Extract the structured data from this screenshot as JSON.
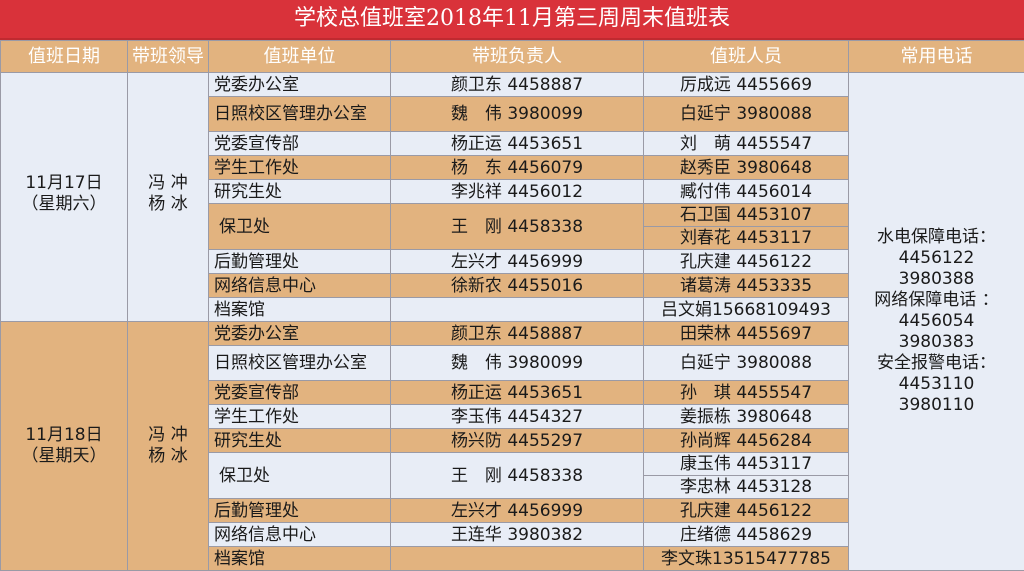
{
  "title": "学校总值班室2018年11月第三周周末值班表",
  "headers": [
    "值班日期",
    "带班领导",
    "值班单位",
    "带班负责人",
    "值班人员",
    "常用电话"
  ],
  "colors": {
    "title_bg": "#d9323a",
    "header_bg": "#e2b37f",
    "row_tan": "#e2b37f",
    "row_light": "#e8edf6"
  },
  "days": [
    {
      "date": "11月17日",
      "weekday": "（星期六）",
      "leaders": [
        "冯 冲",
        "杨 冰"
      ],
      "units": [
        {
          "unit": "党委办公室",
          "head": "颜卫东 4458887",
          "staff": [
            "厉成远 4455669"
          ]
        },
        {
          "unit": "日照校区管理办公室",
          "head": "魏　伟 3980099",
          "staff": [
            "白延宁 3980088"
          ]
        },
        {
          "unit": "党委宣传部",
          "head": "杨正运 4453651",
          "staff": [
            "刘　萌 4455547"
          ]
        },
        {
          "unit": "学生工作处",
          "head": "杨　东 4456079",
          "staff": [
            "赵秀臣 3980648"
          ]
        },
        {
          "unit": "研究生处",
          "head": "李兆祥 4456012",
          "staff": [
            "臧付伟 4456014"
          ]
        },
        {
          "unit": "保卫处",
          "head": "王　刚 4458338",
          "staff": [
            "石卫国 4453107",
            "刘春花 4453117"
          ]
        },
        {
          "unit": "后勤管理处",
          "head": "左兴才 4456999",
          "staff": [
            "孔庆建 4456122"
          ]
        },
        {
          "unit": "网络信息中心",
          "head": "徐新农 4455016",
          "staff": [
            "诸葛涛 4453335"
          ]
        },
        {
          "unit": "档案馆",
          "head": "",
          "staff": [
            "吕文娟15668109493"
          ]
        }
      ]
    },
    {
      "date": "11月18日",
      "weekday": "（星期天）",
      "leaders": [
        "冯 冲",
        "杨 冰"
      ],
      "units": [
        {
          "unit": "党委办公室",
          "head": "颜卫东 4458887",
          "staff": [
            "田荣林 4455697"
          ]
        },
        {
          "unit": "日照校区管理办公室",
          "head": "魏　伟 3980099",
          "staff": [
            "白延宁 3980088"
          ]
        },
        {
          "unit": "党委宣传部",
          "head": "杨正运 4453651",
          "staff": [
            "孙　琪 4455547"
          ]
        },
        {
          "unit": "学生工作处",
          "head": "李玉伟 4454327",
          "staff": [
            "姜振栋 3980648"
          ]
        },
        {
          "unit": "研究生处",
          "head": "杨兴防 4455297",
          "staff": [
            "孙尚辉 4456284"
          ]
        },
        {
          "unit": "保卫处",
          "head": "王　刚 4458338",
          "staff": [
            "康玉伟 4453117",
            "李忠林 4453128"
          ]
        },
        {
          "unit": "后勤管理处",
          "head": "左兴才 4456999",
          "staff": [
            "孔庆建 4456122"
          ]
        },
        {
          "unit": "网络信息中心",
          "head": "王连华 3980382",
          "staff": [
            "庄绪德 4458629"
          ]
        },
        {
          "unit": "档案馆",
          "head": "",
          "staff": [
            "李文珠13515477785"
          ]
        }
      ]
    }
  ],
  "phones": [
    "水电保障电话：",
    "4456122",
    "3980388",
    "网络保障电话 ：",
    "4456054",
    "3980383",
    "安全报警电话：",
    "4453110",
    "3980110"
  ]
}
